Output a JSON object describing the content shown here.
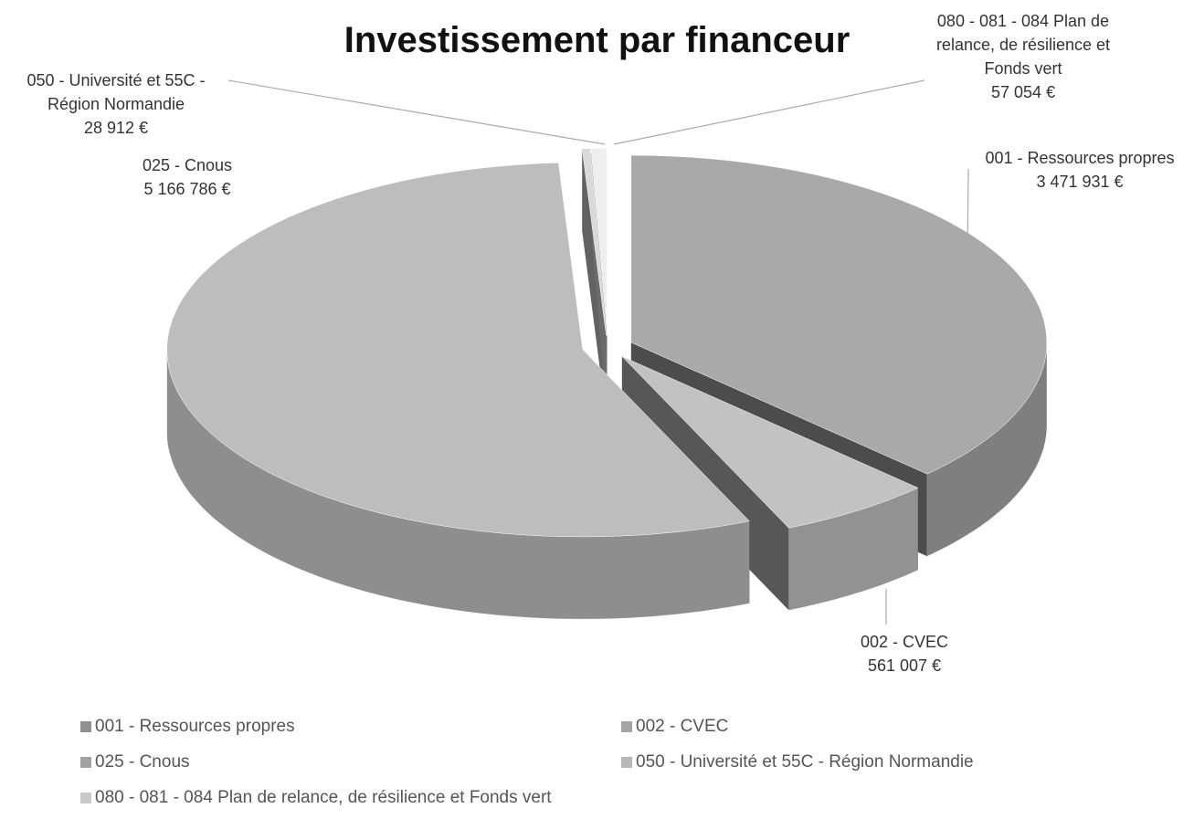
{
  "chart_data": {
    "type": "pie",
    "title": "Investissement par financeur",
    "categories": [
      "001 - Ressources propres",
      "002 - CVEC",
      "025 - Cnous",
      "050 - Université et 55C - Région Normandie",
      "080 - 081 - 084 Plan de relance, de résilience et Fonds vert"
    ],
    "values": [
      3471931,
      561007,
      5166786,
      28912,
      57054
    ],
    "value_labels": [
      "3 471 931 €",
      "561 007 €",
      "5 166 786 €",
      "28 912 €",
      "57 054 €"
    ],
    "colors": [
      "#a9a9a9",
      "#c2c2c2",
      "#bdbdbd",
      "#d9d9d9",
      "#eeeeee"
    ],
    "legend": "bottom"
  }
}
